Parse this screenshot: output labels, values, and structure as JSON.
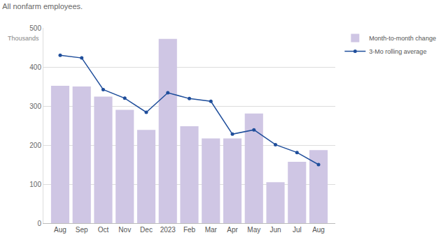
{
  "chart_data": {
    "type": "bar",
    "title": "All nonfarm employees.",
    "ylabel": "Thousands",
    "categories": [
      "Aug",
      "Sep",
      "Oct",
      "Nov",
      "Dec",
      "2023",
      "Feb",
      "Mar",
      "Apr",
      "May",
      "Jun",
      "Jul",
      "Aug"
    ],
    "series": [
      {
        "name": "Month-to-month change",
        "type": "bar",
        "color": "#cfc6e4",
        "values": [
          352,
          350,
          324,
          290,
          239,
          472,
          248,
          217,
          217,
          281,
          105,
          157,
          187
        ]
      },
      {
        "name": "3-Mo rolling average",
        "type": "line",
        "color": "#1f4e9b",
        "marker": "circle",
        "line_style": "solid",
        "values": [
          430,
          423,
          342,
          320,
          284,
          334,
          319,
          312,
          228,
          239,
          201,
          181,
          150
        ]
      }
    ],
    "ylim": [
      0,
      500
    ],
    "yticks": [
      0,
      100,
      200,
      300,
      400,
      500
    ],
    "grid": true,
    "legend": "top right"
  }
}
